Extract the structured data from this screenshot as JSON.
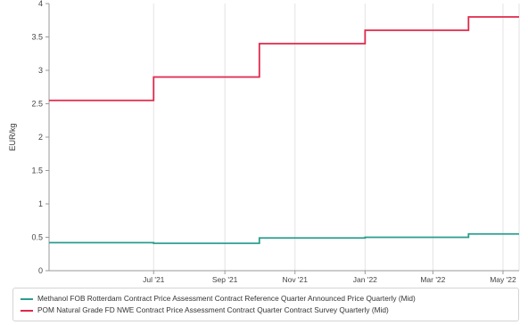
{
  "chart_data": {
    "type": "line",
    "step": true,
    "ylabel": "EUR/kg",
    "xlabel": "",
    "ylim": [
      0,
      4
    ],
    "yticks": [
      "0",
      "0.5",
      "1",
      "1.5",
      "2",
      "2.5",
      "3",
      "3.5",
      "4"
    ],
    "xlim": [
      "2021-04-01",
      "2022-05-15"
    ],
    "xticks": [
      {
        "date": "2021-07-01",
        "label": "Jul '21"
      },
      {
        "date": "2021-09-01",
        "label": "Sep '21"
      },
      {
        "date": "2021-11-01",
        "label": "Nov '21"
      },
      {
        "date": "2022-01-01",
        "label": "Jan '22"
      },
      {
        "date": "2022-03-01",
        "label": "Mar '22"
      },
      {
        "date": "2022-05-01",
        "label": "May '22"
      }
    ],
    "grid": "vertical",
    "legend_position": "bottom",
    "series": [
      {
        "name": "Methanol FOB Rotterdam Contract Price Assessment Contract Reference Quarter Announced Price Quarterly (Mid)",
        "color": "#2a9d8f",
        "x": [
          "2021-04-01",
          "2021-07-01",
          "2021-10-01",
          "2022-01-01",
          "2022-04-01",
          "2022-05-15"
        ],
        "values": [
          0.42,
          0.41,
          0.49,
          0.5,
          0.55,
          0.55
        ]
      },
      {
        "name": "POM Natural Grade FD NWE Contract Price Assessment Contract Quarter Contract Survey Quarterly (Mid)",
        "color": "#e0284b",
        "x": [
          "2021-04-01",
          "2021-07-01",
          "2021-10-01",
          "2022-01-01",
          "2022-04-01",
          "2022-05-15"
        ],
        "values": [
          2.55,
          2.9,
          3.4,
          3.6,
          3.8,
          3.8
        ]
      }
    ]
  }
}
